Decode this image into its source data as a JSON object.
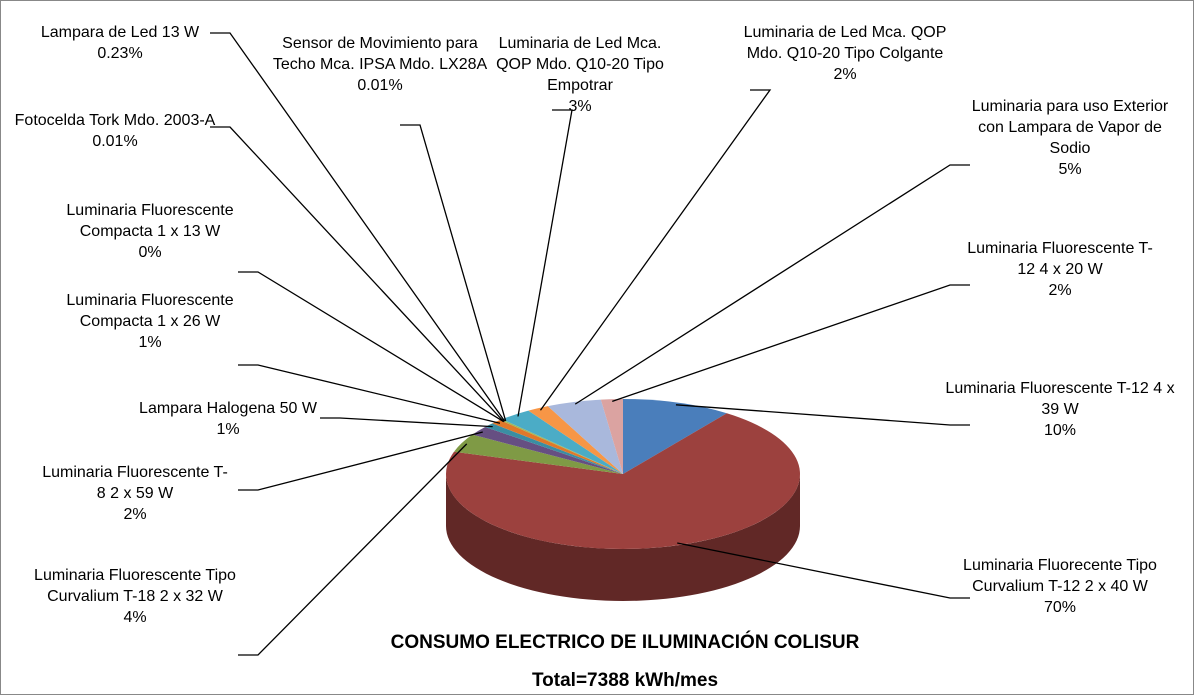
{
  "chart_data": {
    "type": "pie",
    "title": "CONSUMO ELECTRICO DE ILUMINACIÓN COLISUR",
    "subtitle": "Total=7388 kWh/mes",
    "categories": [
      "Luminaria Fluorescente T-12  4 x 39 W",
      "Luminaria Fluorecente Tipo Curvalium T-12  2 x 40 W",
      "Luminaria Fluorescente Tipo Curvalium T-18  2 x 32 W",
      "Luminaria Fluorescente T-8  2 x 59 W",
      "Lampara Halogena 50 W",
      "Luminaria Fluorescente Compacta 1 x 26 W",
      "Luminaria Fluorescente Compacta 1 x 13 W",
      "Fotocelda Tork Mdo. 2003-A",
      "Lampara de Led 13 W",
      "Sensor de Movimiento para Techo Mca. IPSA Mdo. LX28A",
      "Luminaria de Led Mca. QOP Mdo. Q10-20 Tipo Empotrar",
      "Luminaria de Led Mca. QOP Mdo. Q10-20 Tipo Colgante",
      "Luminaria para uso Exterior con Lampara de Vapor de Sodio",
      "Luminaria Fluorescente T-12  4 x 20 W"
    ],
    "values": [
      10,
      70,
      4,
      2,
      1,
      1,
      0,
      0.01,
      0.23,
      0.01,
      3,
      2,
      5,
      2
    ],
    "value_labels": [
      "10%",
      "70%",
      "4%",
      "2%",
      "1%",
      "1%",
      "0%",
      "0.01%",
      "0.23%",
      "0.01%",
      "3%",
      "2%",
      "5%",
      "2%"
    ],
    "colors": [
      "#4a7ebb",
      "#9c413e",
      "#7f9a45",
      "#664f82",
      "#3a8ea3",
      "#e0782a",
      "#8db0d9",
      "#c0504d",
      "#9bbb59",
      "#8064a2",
      "#4bacc6",
      "#f79646",
      "#a9b8dc",
      "#dba3a1"
    ]
  }
}
